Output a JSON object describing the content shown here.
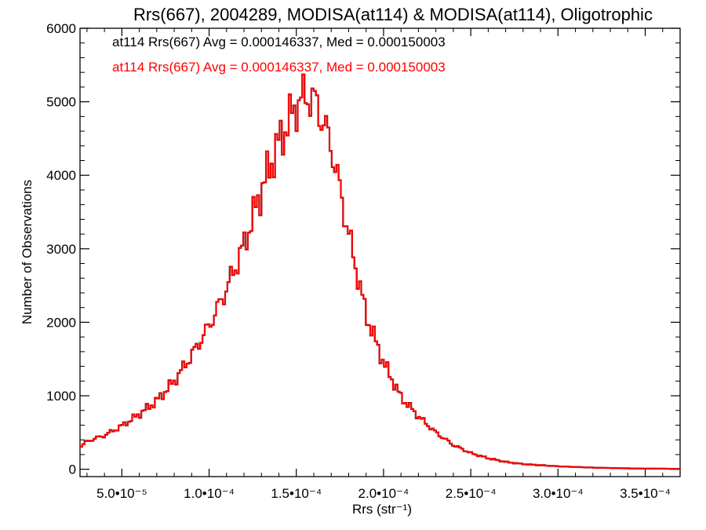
{
  "chart_data": {
    "type": "histogram-step",
    "title": "Rrs(667), 2004289, MODISA(at114) & MODISA(at114), Oligotrophic",
    "xlabel": "Rrs (str⁻¹)",
    "ylabel": "Number of Observations",
    "xlim": [
      2.6e-05,
      0.00037
    ],
    "ylim": [
      -100,
      6000
    ],
    "x_ticks": [
      {
        "value": 5e-05,
        "label": "5.0•10⁻⁵"
      },
      {
        "value": 0.0001,
        "label": "1.0•10⁻⁴"
      },
      {
        "value": 0.00015,
        "label": "1.5•10⁻⁴"
      },
      {
        "value": 0.0002,
        "label": "2.0•10⁻⁴"
      },
      {
        "value": 0.00025,
        "label": "2.5•10⁻⁴"
      },
      {
        "value": 0.0003,
        "label": "3.0•10⁻⁴"
      },
      {
        "value": 0.00035,
        "label": "3.5•10⁻⁴"
      }
    ],
    "y_ticks": [
      {
        "value": 0,
        "label": "0"
      },
      {
        "value": 1000,
        "label": "1000"
      },
      {
        "value": 2000,
        "label": "2000"
      },
      {
        "value": 3000,
        "label": "3000"
      },
      {
        "value": 4000,
        "label": "4000"
      },
      {
        "value": 5000,
        "label": "5000"
      },
      {
        "value": 6000,
        "label": "6000"
      }
    ],
    "legend": [
      {
        "text": "at114 Rrs(667) Avg = 0.000146337, Med = 0.000150003",
        "color": "#000000"
      },
      {
        "text": "at114 Rrs(667) Avg = 0.000146337, Med = 0.000150003",
        "color": "#ff0000"
      }
    ],
    "legend_position": "top-left",
    "series": [
      {
        "color": "#000000"
      },
      {
        "color": "#ff0000"
      }
    ],
    "anchors": [
      [
        2.6e-05,
        300
      ],
      [
        3e-05,
        380
      ],
      [
        4e-05,
        460
      ],
      [
        5e-05,
        590
      ],
      [
        6e-05,
        750
      ],
      [
        7e-05,
        930
      ],
      [
        8e-05,
        1200
      ],
      [
        9e-05,
        1550
      ],
      [
        0.0001,
        1950
      ],
      [
        0.00011,
        2450
      ],
      [
        0.00012,
        3050
      ],
      [
        0.00013,
        3800
      ],
      [
        0.00014,
        4450
      ],
      [
        0.00015,
        4950
      ],
      [
        0.000156,
        5100
      ],
      [
        0.000162,
        4950
      ],
      [
        0.00017,
        4400
      ],
      [
        0.00018,
        3200
      ],
      [
        0.00019,
        2100
      ],
      [
        0.0002,
        1450
      ],
      [
        0.00021,
        980
      ],
      [
        0.00022,
        720
      ],
      [
        0.00023,
        500
      ],
      [
        0.00024,
        330
      ],
      [
        0.00025,
        220
      ],
      [
        0.00026,
        150
      ],
      [
        0.00027,
        100
      ],
      [
        0.00028,
        70
      ],
      [
        0.0003,
        40
      ],
      [
        0.00032,
        22
      ],
      [
        0.00034,
        12
      ],
      [
        0.00037,
        5
      ]
    ]
  }
}
